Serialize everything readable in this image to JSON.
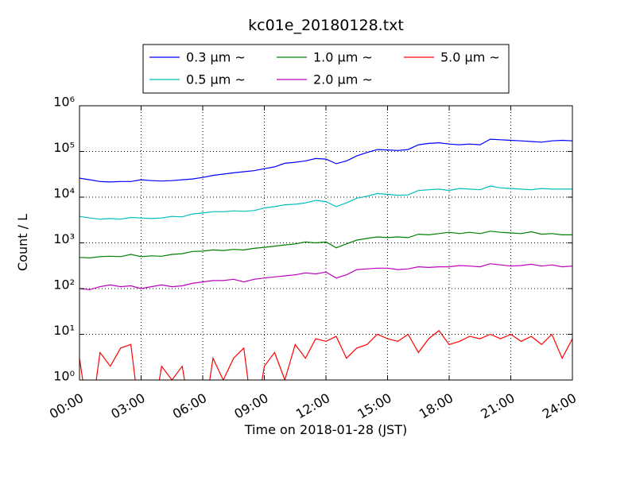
{
  "chart_data": {
    "type": "line",
    "title": "kc01e_20180128.txt",
    "x_label": "Time on 2018-01-28 (JST)",
    "y_label": "Count / L",
    "log_y": true,
    "grid": true,
    "x": [
      0,
      0.5,
      1,
      1.5,
      2,
      2.5,
      3,
      3.5,
      4,
      4.5,
      5,
      5.5,
      6,
      6.5,
      7,
      7.5,
      8,
      8.5,
      9,
      9.5,
      10,
      10.5,
      11,
      11.5,
      12,
      12.5,
      13,
      13.5,
      14,
      14.5,
      15,
      15.5,
      16,
      16.5,
      17,
      17.5,
      18,
      18.5,
      19,
      19.5,
      20,
      20.5,
      21,
      21.5,
      22,
      22.5,
      23,
      23.5,
      24
    ],
    "xlim": [
      0,
      24
    ],
    "xticks": [
      {
        "value": 0,
        "label": "00:00"
      },
      {
        "value": 3,
        "label": "03:00"
      },
      {
        "value": 6,
        "label": "06:00"
      },
      {
        "value": 9,
        "label": "09:00"
      },
      {
        "value": 12,
        "label": "12:00"
      },
      {
        "value": 15,
        "label": "15:00"
      },
      {
        "value": 18,
        "label": "18:00"
      },
      {
        "value": 21,
        "label": "21:00"
      },
      {
        "value": 24,
        "label": "24:00"
      }
    ],
    "ylim": [
      1,
      1000000
    ],
    "yticks": [
      {
        "value": 1,
        "label": "10⁰"
      },
      {
        "value": 10,
        "label": "10¹"
      },
      {
        "value": 100,
        "label": "10²"
      },
      {
        "value": 1000,
        "label": "10³"
      },
      {
        "value": 10000,
        "label": "10⁴"
      },
      {
        "value": 100000,
        "label": "10⁵"
      },
      {
        "value": 1000000,
        "label": "10⁶"
      }
    ],
    "series": [
      {
        "name": "0.3 μm ~",
        "color": "#0000ff",
        "values": [
          26000,
          24000,
          22000,
          21500,
          22000,
          22000,
          24000,
          23000,
          22500,
          23000,
          24000,
          25000,
          27000,
          30000,
          32000,
          34000,
          36000,
          38000,
          42000,
          46000,
          55000,
          58000,
          62000,
          70000,
          68000,
          54000,
          62000,
          80000,
          95000,
          110000,
          108000,
          105000,
          110000,
          140000,
          150000,
          155000,
          145000,
          140000,
          145000,
          140000,
          185000,
          180000,
          175000,
          170000,
          165000,
          160000,
          170000,
          175000,
          170000
        ]
      },
      {
        "name": "0.5 μm ~",
        "color": "#00bfbf",
        "values": [
          3800,
          3500,
          3300,
          3400,
          3300,
          3600,
          3500,
          3400,
          3500,
          3800,
          3700,
          4300,
          4500,
          4800,
          4800,
          5000,
          4900,
          5100,
          5800,
          6200,
          6800,
          7000,
          7500,
          8500,
          8000,
          6200,
          7500,
          9500,
          10500,
          12000,
          11500,
          11000,
          11200,
          14000,
          14500,
          15000,
          14000,
          15500,
          15000,
          14500,
          17500,
          16000,
          15500,
          15000,
          14500,
          15500,
          15000,
          15000,
          15000
        ]
      },
      {
        "name": "1.0 μm ~",
        "color": "#008000",
        "values": [
          480,
          470,
          500,
          510,
          500,
          560,
          500,
          520,
          510,
          560,
          580,
          650,
          660,
          700,
          680,
          720,
          700,
          760,
          800,
          850,
          900,
          950,
          1050,
          1000,
          1050,
          780,
          950,
          1150,
          1250,
          1350,
          1300,
          1350,
          1300,
          1550,
          1500,
          1600,
          1700,
          1600,
          1700,
          1600,
          1800,
          1700,
          1650,
          1600,
          1750,
          1550,
          1600,
          1500,
          1500
        ]
      },
      {
        "name": "2.0 μm ~",
        "color": "#bf00bf",
        "values": [
          100,
          95,
          110,
          120,
          110,
          115,
          100,
          110,
          120,
          110,
          115,
          130,
          140,
          150,
          150,
          160,
          140,
          160,
          170,
          180,
          190,
          200,
          220,
          210,
          230,
          170,
          200,
          260,
          270,
          280,
          280,
          260,
          270,
          300,
          290,
          300,
          300,
          320,
          310,
          300,
          350,
          330,
          310,
          320,
          340,
          310,
          330,
          300,
          310
        ]
      },
      {
        "name": "5.0 μm ~",
        "color": "#ff0000",
        "values": [
          3,
          0,
          4,
          2,
          5,
          6,
          0,
          0,
          2,
          1,
          2,
          0,
          0,
          3,
          1,
          3,
          5,
          0,
          2,
          4,
          1,
          6,
          3,
          8,
          7,
          9,
          3,
          5,
          6,
          10,
          8,
          7,
          10,
          4,
          8,
          12,
          6,
          7,
          9,
          8,
          10,
          8,
          10,
          7,
          9,
          6,
          10,
          3,
          8
        ]
      }
    ]
  }
}
